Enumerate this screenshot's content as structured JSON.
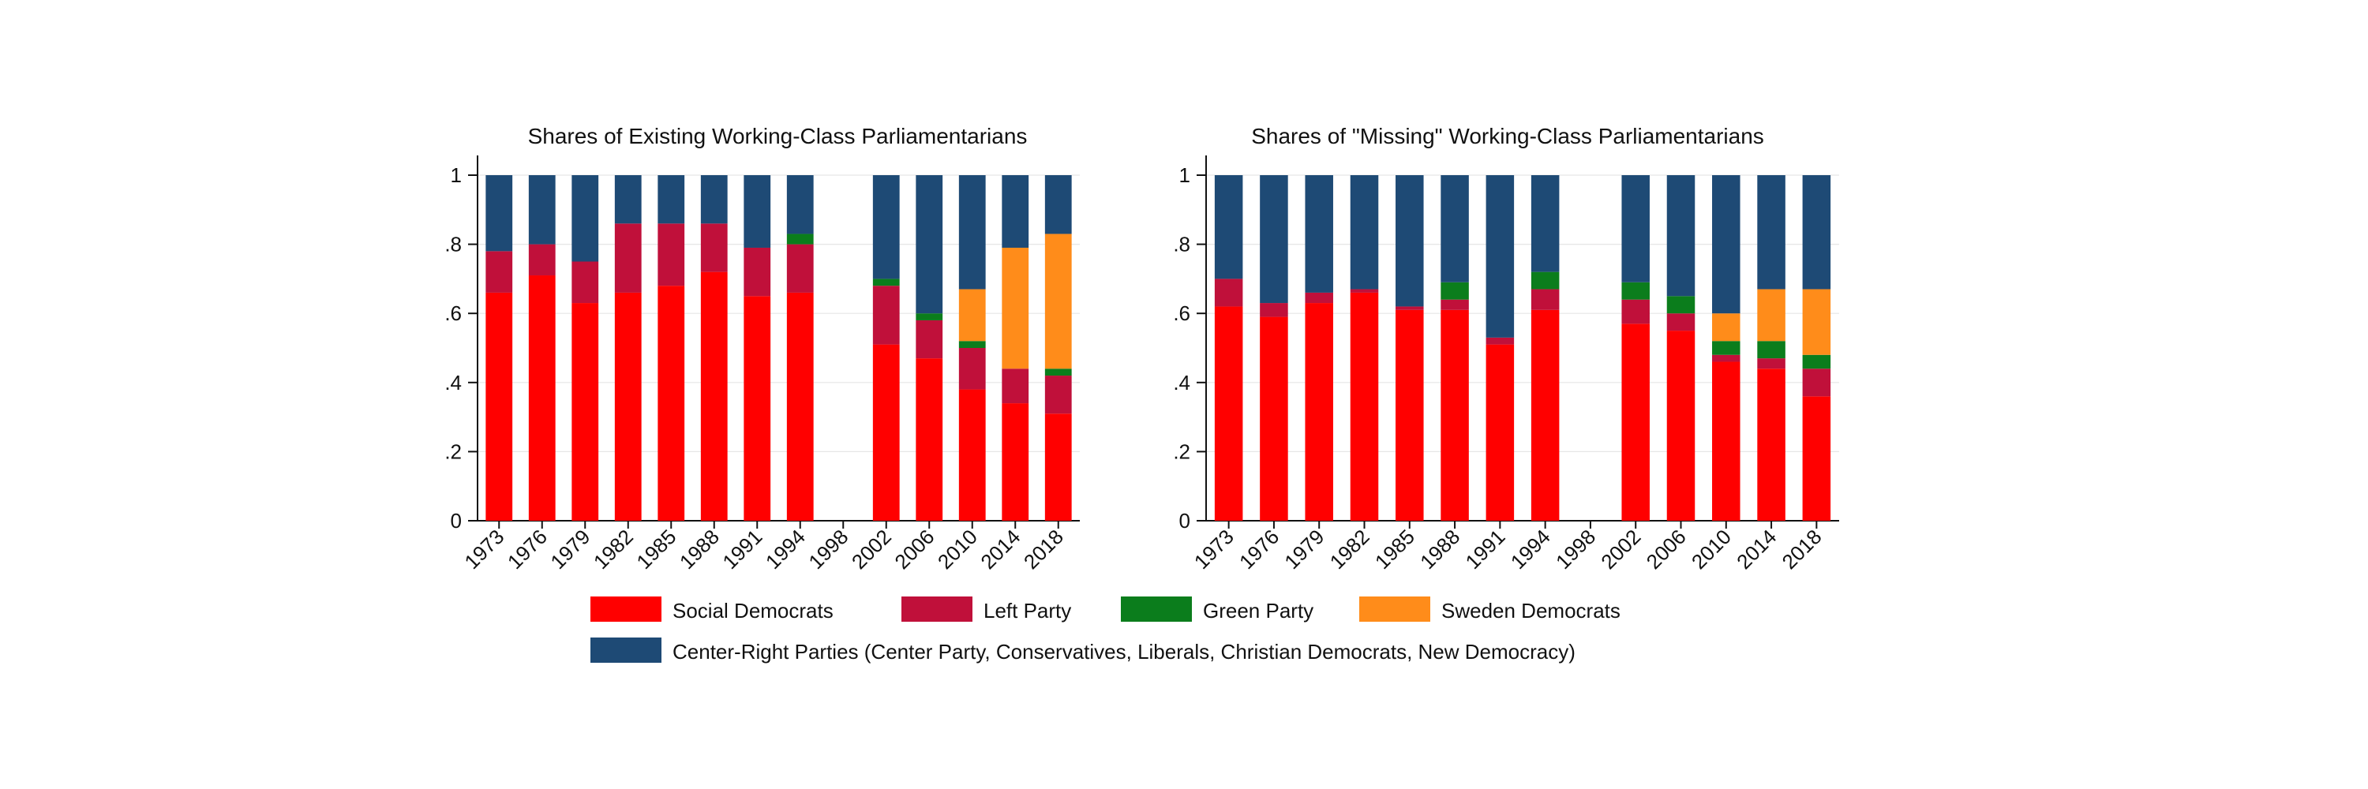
{
  "legend": {
    "social_democrats": "Social Democrats",
    "left_party": "Left Party",
    "green_party": "Green Party",
    "sweden_democrats": "Sweden Democrats",
    "center_right": "Center-Right Parties (Center Party, Conservatives, Liberals, Christian Democrats, New Democracy)"
  },
  "colors": {
    "social_democrats": "#ff0000",
    "left_party": "#c0103a",
    "green_party": "#0b7d1c",
    "sweden_democrats": "#ff8c1a",
    "center_right": "#1e4a75",
    "axis": "#111111"
  },
  "chart_data": [
    {
      "type": "bar",
      "stacked": true,
      "title": "Shares of Existing Working-Class Parliamentarians",
      "xlabel": "",
      "ylabel": "",
      "ylim": [
        0,
        1
      ],
      "y_ticks": [
        "0",
        ".2",
        ".4",
        ".6",
        ".8",
        "1"
      ],
      "categories": [
        "1973",
        "1976",
        "1979",
        "1982",
        "1985",
        "1988",
        "1991",
        "1994",
        "1998",
        "2002",
        "2006",
        "2010",
        "2014",
        "2018"
      ],
      "series": [
        {
          "name": "Social Democrats",
          "key": "social_democrats",
          "values": [
            0.66,
            0.71,
            0.63,
            0.66,
            0.68,
            0.72,
            0.65,
            0.66,
            0,
            0.51,
            0.47,
            0.38,
            0.34,
            0.31
          ]
        },
        {
          "name": "Left Party",
          "key": "left_party",
          "values": [
            0.12,
            0.09,
            0.12,
            0.2,
            0.18,
            0.14,
            0.14,
            0.14,
            0,
            0.17,
            0.11,
            0.12,
            0.1,
            0.11
          ]
        },
        {
          "name": "Green Party",
          "key": "green_party",
          "values": [
            0,
            0,
            0,
            0,
            0,
            0,
            0,
            0.03,
            0,
            0.02,
            0.02,
            0.02,
            0,
            0.02
          ]
        },
        {
          "name": "Sweden Democrats",
          "key": "sweden_democrats",
          "values": [
            0,
            0,
            0,
            0,
            0,
            0,
            0,
            0,
            0,
            0,
            0,
            0.15,
            0.35,
            0.39
          ]
        },
        {
          "name": "Center-Right Parties (Center Party, Conservatives, Liberals, Christian Democrats, New Democracy)",
          "key": "center_right",
          "values": [
            0.22,
            0.2,
            0.25,
            0.14,
            0.14,
            0.14,
            0.21,
            0.17,
            0,
            0.3,
            0.4,
            0.33,
            0.21,
            0.17
          ]
        }
      ]
    },
    {
      "type": "bar",
      "stacked": true,
      "title": "Shares of \"Missing\" Working-Class Parliamentarians",
      "xlabel": "",
      "ylabel": "",
      "ylim": [
        0,
        1
      ],
      "y_ticks": [
        "0",
        ".2",
        ".4",
        ".6",
        ".8",
        "1"
      ],
      "categories": [
        "1973",
        "1976",
        "1979",
        "1982",
        "1985",
        "1988",
        "1991",
        "1994",
        "1998",
        "2002",
        "2006",
        "2010",
        "2014",
        "2018"
      ],
      "series": [
        {
          "name": "Social Democrats",
          "key": "social_democrats",
          "values": [
            0.62,
            0.59,
            0.63,
            0.66,
            0.61,
            0.61,
            0.51,
            0.61,
            0,
            0.57,
            0.55,
            0.46,
            0.44,
            0.36
          ]
        },
        {
          "name": "Left Party",
          "key": "left_party",
          "values": [
            0.08,
            0.04,
            0.03,
            0.01,
            0.01,
            0.03,
            0.02,
            0.06,
            0,
            0.07,
            0.05,
            0.02,
            0.03,
            0.08
          ]
        },
        {
          "name": "Green Party",
          "key": "green_party",
          "values": [
            0,
            0,
            0,
            0,
            0,
            0.05,
            0,
            0.05,
            0,
            0.05,
            0.05,
            0.04,
            0.05,
            0.04
          ]
        },
        {
          "name": "Sweden Democrats",
          "key": "sweden_democrats",
          "values": [
            0,
            0,
            0,
            0,
            0,
            0,
            0,
            0,
            0,
            0,
            0,
            0.08,
            0.15,
            0.19
          ]
        },
        {
          "name": "Center-Right Parties (Center Party, Conservatives, Liberals, Christian Democrats, New Democracy)",
          "key": "center_right",
          "values": [
            0.3,
            0.37,
            0.34,
            0.33,
            0.38,
            0.31,
            0.47,
            0.28,
            0,
            0.31,
            0.35,
            0.4,
            0.33,
            0.33
          ]
        }
      ]
    }
  ]
}
